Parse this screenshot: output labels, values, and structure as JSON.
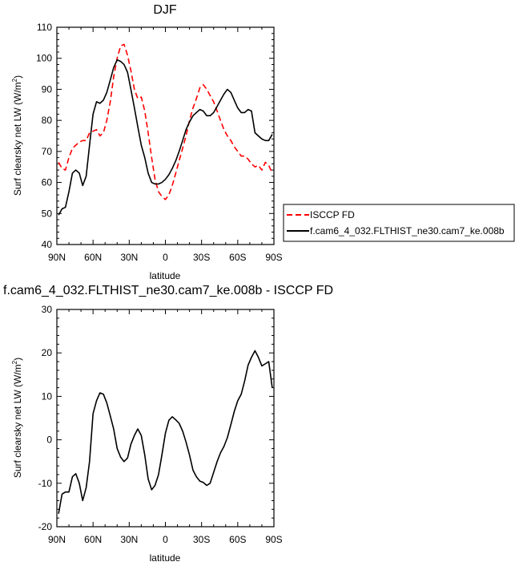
{
  "chart_data": [
    {
      "type": "line",
      "title": "DJF",
      "xlabel": "latitude",
      "ylabel": "Surf clearsky net LW (W/m",
      "ylabel_sup": "2",
      "ylabel_end": ")",
      "xlim": [
        -90,
        90
      ],
      "ylim": [
        40,
        110
      ],
      "x_ticks": [
        -90,
        -60,
        -30,
        0,
        30,
        60,
        90
      ],
      "x_tick_labels": [
        "90N",
        "60N",
        "30N",
        "0",
        "30S",
        "60S",
        "90S"
      ],
      "y_ticks": [
        40,
        50,
        60,
        70,
        80,
        90,
        100,
        110
      ],
      "y_tick_labels": [
        "40",
        "50",
        "60",
        "70",
        "80",
        "90",
        "100",
        "110"
      ],
      "grid": false,
      "legend": "right",
      "series": [
        {
          "name": "ISCCP FD",
          "color": "#ff0000",
          "dash": true,
          "x": [
            -88.6,
            -85.7,
            -82.9,
            -80,
            -77.1,
            -74.3,
            -71.4,
            -68.6,
            -65.7,
            -62.9,
            -60,
            -57.1,
            -54.3,
            -51.4,
            -48.6,
            -45.7,
            -42.9,
            -40,
            -37.1,
            -34.3,
            -31.4,
            -28.6,
            -25.7,
            -22.9,
            -20,
            -17.1,
            -14.3,
            -11.4,
            -8.6,
            -5.7,
            -2.9,
            0,
            2.9,
            5.7,
            8.6,
            11.4,
            14.3,
            17.1,
            20,
            22.9,
            25.7,
            28.6,
            31.4,
            34.3,
            37.1,
            40,
            42.9,
            45.7,
            48.6,
            51.4,
            54.3,
            57.1,
            60,
            62.9,
            65.7,
            68.6,
            71.4,
            74.3,
            77.1,
            80,
            82.9,
            85.7,
            88.6
          ],
          "y": [
            66.5,
            64.5,
            64.0,
            68.0,
            71.0,
            72.0,
            73.0,
            73.5,
            73.5,
            76.0,
            76.5,
            77.0,
            75.0,
            76.0,
            80.0,
            86.0,
            94.0,
            100.0,
            104.0,
            104.5,
            101.0,
            96.0,
            90.0,
            87.0,
            87.5,
            83.0,
            76.0,
            68.0,
            61.0,
            57.0,
            55.5,
            54.5,
            56.0,
            59.0,
            63.0,
            67.0,
            71.0,
            75.0,
            80.0,
            84.0,
            87.0,
            90.5,
            91.5,
            90.0,
            88.0,
            86.0,
            83.0,
            80.0,
            77.0,
            75.0,
            73.5,
            71.5,
            70.0,
            68.5,
            68.5,
            67.5,
            66.0,
            65.0,
            65.5,
            64.0,
            66.5,
            65.5,
            63.0
          ]
        },
        {
          "name": "f.cam6_4_032.FLTHIST_ne30.cam7_ke.008b",
          "color": "#000000",
          "dash": false,
          "x": [
            -88.6,
            -85.7,
            -82.9,
            -80,
            -77.1,
            -74.3,
            -71.4,
            -68.6,
            -65.7,
            -62.9,
            -60,
            -57.1,
            -54.3,
            -51.4,
            -48.6,
            -45.7,
            -42.9,
            -40,
            -37.1,
            -34.3,
            -31.4,
            -28.6,
            -25.7,
            -22.9,
            -20,
            -17.1,
            -14.3,
            -11.4,
            -8.6,
            -5.7,
            -2.9,
            0,
            2.9,
            5.7,
            8.6,
            11.4,
            14.3,
            17.1,
            20,
            22.9,
            25.7,
            28.6,
            31.4,
            34.3,
            37.1,
            40,
            42.9,
            45.7,
            48.6,
            51.4,
            54.3,
            57.1,
            60,
            62.9,
            65.7,
            68.6,
            71.4,
            74.3,
            77.1,
            80,
            82.9,
            85.7,
            88.6
          ],
          "y": [
            49.5,
            51.5,
            52.0,
            57.0,
            63.0,
            64.0,
            63.0,
            59.0,
            62.0,
            72.0,
            82.0,
            86.0,
            85.5,
            86.5,
            89.0,
            93.0,
            97.0,
            99.5,
            99.0,
            98.0,
            95.5,
            90.0,
            84.0,
            78.0,
            72.0,
            68.0,
            63.0,
            60.0,
            59.5,
            59.5,
            60.0,
            61.0,
            62.5,
            64.5,
            67.0,
            70.0,
            73.5,
            77.0,
            79.5,
            81.5,
            82.5,
            83.5,
            83.0,
            81.5,
            81.5,
            82.5,
            84.5,
            86.5,
            88.5,
            90.0,
            89.0,
            86.5,
            84.0,
            82.5,
            82.5,
            83.5,
            83.0,
            76.0,
            75.0,
            74.0,
            73.5,
            73.5,
            75.5
          ]
        }
      ]
    },
    {
      "type": "line",
      "title": "f.cam6_4_032.FLTHIST_ne30.cam7_ke.008b - ISCCP FD",
      "xlabel": "latitude",
      "ylabel": "Surf clearsky net LW (W/m",
      "ylabel_sup": "2",
      "ylabel_end": ")",
      "xlim": [
        -90,
        90
      ],
      "ylim": [
        -20,
        30
      ],
      "x_ticks": [
        -90,
        -60,
        -30,
        0,
        30,
        60,
        90
      ],
      "x_tick_labels": [
        "90N",
        "60N",
        "30N",
        "0",
        "30S",
        "60S",
        "90S"
      ],
      "y_ticks": [
        -20,
        -10,
        0,
        10,
        20,
        30
      ],
      "y_tick_labels": [
        "-20",
        "-10",
        "0",
        "10",
        "20",
        "30"
      ],
      "grid": false,
      "series": [
        {
          "color": "#000000",
          "dash": false,
          "x": [
            -88.6,
            -85.7,
            -82.9,
            -80,
            -77.1,
            -74.3,
            -71.4,
            -68.6,
            -65.7,
            -62.9,
            -60,
            -57.1,
            -54.3,
            -51.4,
            -48.6,
            -45.7,
            -42.9,
            -40,
            -37.1,
            -34.3,
            -31.4,
            -28.6,
            -25.7,
            -22.9,
            -20,
            -17.1,
            -14.3,
            -11.4,
            -8.6,
            -5.7,
            -2.9,
            0,
            2.9,
            5.7,
            8.6,
            11.4,
            14.3,
            17.1,
            20,
            22.9,
            25.7,
            28.6,
            31.4,
            34.3,
            37.1,
            40,
            42.9,
            45.7,
            48.6,
            51.4,
            54.3,
            57.1,
            60,
            62.9,
            65.7,
            68.6,
            71.4,
            74.3,
            77.1,
            80,
            82.9,
            85.7,
            88.6
          ],
          "y": [
            -17.0,
            -12.5,
            -12.0,
            -12.0,
            -8.5,
            -7.8,
            -10.0,
            -14.0,
            -11.0,
            -5.0,
            6.0,
            9.0,
            10.8,
            10.5,
            8.5,
            5.5,
            2.5,
            -2.0,
            -4.0,
            -5.0,
            -4.2,
            -1.0,
            1.0,
            2.5,
            1.0,
            -3.5,
            -9.0,
            -11.5,
            -10.5,
            -8.0,
            -3.5,
            1.5,
            4.5,
            5.3,
            4.6,
            3.8,
            2.0,
            -0.5,
            -3.5,
            -7.0,
            -8.5,
            -9.5,
            -9.8,
            -10.5,
            -10.0,
            -7.5,
            -5.0,
            -3.0,
            -1.5,
            0.5,
            3.5,
            6.5,
            9.0,
            10.5,
            13.5,
            17.2,
            19.0,
            20.5,
            19.0,
            17.0,
            17.5,
            18.0,
            12.0
          ]
        }
      ]
    }
  ]
}
